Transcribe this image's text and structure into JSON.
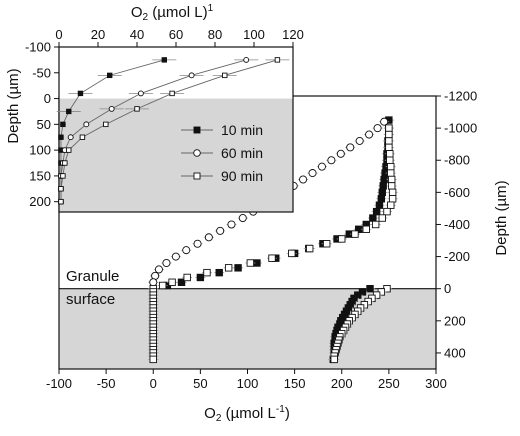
{
  "main": {
    "xlabel": "O2 (µmol L-1)",
    "ylabel": "Depth (µm)",
    "xlim": [
      -100,
      300
    ],
    "ylim": [
      -1200,
      500
    ],
    "xticks": [
      -100,
      -50,
      0,
      50,
      100,
      150,
      200,
      250,
      300
    ],
    "yticks": [
      -1200,
      -1000,
      -800,
      -600,
      -400,
      -200,
      0,
      200,
      400
    ],
    "annotation_line1": "Granule",
    "annotation_line2": "surface"
  },
  "inset": {
    "xlabel": "O2 (µmol L)1",
    "ylabel": "Depth (µm)",
    "xlim": [
      0,
      120
    ],
    "ylim": [
      -100,
      220
    ],
    "xticks": [
      0,
      20,
      40,
      60,
      80,
      100,
      120
    ],
    "yticks": [
      -100,
      -50,
      0,
      50,
      100,
      150,
      200
    ]
  },
  "legend": {
    "items": [
      "10 min",
      "60 min",
      "90 min"
    ]
  },
  "chart_data": [
    {
      "type": "scatter",
      "title": "",
      "xlabel": "O2 (µmol L-1)",
      "ylabel": "Depth (µm)",
      "xlim": [
        -100,
        300
      ],
      "ylim": [
        -1200,
        500
      ],
      "y_inverted": true,
      "grid": false,
      "shaded_region": {
        "y_from": 0,
        "y_to": 500
      },
      "series": [
        {
          "marker": "filled-square",
          "points": [
            [
              250,
              -1050
            ],
            [
              250,
              -1000
            ],
            [
              250,
              -960
            ],
            [
              249,
              -920
            ],
            [
              249,
              -880
            ],
            [
              248,
              -840
            ],
            [
              248,
              -800
            ],
            [
              247,
              -760
            ],
            [
              246,
              -720
            ],
            [
              245,
              -680
            ],
            [
              244,
              -640
            ],
            [
              243,
              -600
            ],
            [
              242,
              -560
            ],
            [
              240,
              -520
            ],
            [
              237,
              -480
            ],
            [
              233,
              -440
            ],
            [
              226,
              -400
            ],
            [
              218,
              -370
            ],
            [
              208,
              -340
            ],
            [
              195,
              -310
            ],
            [
              180,
              -280
            ],
            [
              165,
              -250
            ],
            [
              150,
              -220
            ],
            [
              130,
              -190
            ],
            [
              110,
              -160
            ],
            [
              90,
              -130
            ],
            [
              70,
              -100
            ],
            [
              50,
              -70
            ],
            [
              30,
              -40
            ],
            [
              15,
              -20
            ],
            [
              230,
              0
            ],
            [
              222,
              20
            ],
            [
              217,
              40
            ],
            [
              213,
              60
            ],
            [
              211,
              80
            ],
            [
              209,
              100
            ],
            [
              207,
              120
            ],
            [
              205,
              140
            ],
            [
              203,
              160
            ],
            [
              201,
              180
            ],
            [
              199,
              200
            ],
            [
              198,
              220
            ],
            [
              196,
              240
            ],
            [
              195,
              260
            ],
            [
              194,
              280
            ],
            [
              193,
              300
            ],
            [
              193,
              320
            ],
            [
              192,
              340
            ],
            [
              192,
              360
            ],
            [
              192,
              380
            ],
            [
              192,
              400
            ],
            [
              192,
              420
            ],
            [
              191,
              440
            ]
          ]
        },
        {
          "marker": "open-circle",
          "points": [
            [
              245,
              -1040
            ],
            [
              238,
              -1000
            ],
            [
              229,
              -960
            ],
            [
              219,
              -920
            ],
            [
              209,
              -880
            ],
            [
              199,
              -840
            ],
            [
              189,
              -800
            ],
            [
              179,
              -760
            ],
            [
              169,
              -720
            ],
            [
              159,
              -680
            ],
            [
              149,
              -640
            ],
            [
              139,
              -600
            ],
            [
              128,
              -560
            ],
            [
              118,
              -520
            ],
            [
              106,
              -480
            ],
            [
              95,
              -440
            ],
            [
              83,
              -400
            ],
            [
              71,
              -360
            ],
            [
              59,
              -320
            ],
            [
              47,
              -280
            ],
            [
              35,
              -240
            ],
            [
              24,
              -200
            ],
            [
              14,
              -160
            ],
            [
              6,
              -120
            ],
            [
              2,
              -80
            ],
            [
              0,
              -40
            ]
          ]
        },
        {
          "marker": "open-square",
          "points": [
            [
              250,
              -1000
            ],
            [
              250,
              -960
            ],
            [
              250,
              -920
            ],
            [
              250,
              -880
            ],
            [
              251,
              -840
            ],
            [
              251,
              -800
            ],
            [
              252,
              -760
            ],
            [
              252,
              -720
            ],
            [
              253,
              -680
            ],
            [
              253,
              -640
            ],
            [
              254,
              -600
            ],
            [
              254,
              -560
            ],
            [
              252,
              -520
            ],
            [
              248,
              -480
            ],
            [
              243,
              -440
            ],
            [
              236,
              -400
            ],
            [
              226,
              -370
            ],
            [
              214,
              -340
            ],
            [
              200,
              -310
            ],
            [
              184,
              -280
            ],
            [
              166,
              -250
            ],
            [
              147,
              -220
            ],
            [
              126,
              -190
            ],
            [
              103,
              -160
            ],
            [
              80,
              -130
            ],
            [
              57,
              -100
            ],
            [
              36,
              -70
            ],
            [
              20,
              -40
            ],
            [
              10,
              -20
            ],
            [
              248,
              0
            ],
            [
              242,
              20
            ],
            [
              237,
              40
            ],
            [
              232,
              60
            ],
            [
              228,
              80
            ],
            [
              224,
              100
            ],
            [
              220,
              120
            ],
            [
              217,
              140
            ],
            [
              214,
              160
            ],
            [
              211,
              180
            ],
            [
              208,
              200
            ],
            [
              206,
              220
            ],
            [
              204,
              240
            ],
            [
              202,
              260
            ],
            [
              200,
              280
            ],
            [
              198,
              300
            ],
            [
              197,
              320
            ],
            [
              196,
              340
            ],
            [
              195,
              360
            ],
            [
              194,
              380
            ],
            [
              193,
              400
            ],
            [
              192,
              420
            ],
            [
              192,
              440
            ],
            [
              0,
              0
            ],
            [
              0,
              20
            ],
            [
              0,
              40
            ],
            [
              0,
              60
            ],
            [
              0,
              80
            ],
            [
              0,
              100
            ],
            [
              0,
              120
            ],
            [
              0,
              140
            ],
            [
              0,
              160
            ],
            [
              0,
              180
            ],
            [
              0,
              200
            ],
            [
              0,
              220
            ],
            [
              0,
              240
            ],
            [
              0,
              260
            ],
            [
              0,
              280
            ],
            [
              0,
              300
            ],
            [
              0,
              320
            ],
            [
              0,
              340
            ],
            [
              0,
              360
            ],
            [
              0,
              380
            ],
            [
              0,
              400
            ],
            [
              0,
              420
            ],
            [
              0,
              440
            ]
          ]
        }
      ]
    },
    {
      "type": "scatter",
      "title": "",
      "xlabel": "O2 (µmol L)1",
      "ylabel": "Depth (µm)",
      "xlim": [
        0,
        120
      ],
      "ylim": [
        -100,
        220
      ],
      "y_inverted": true,
      "grid": false,
      "shaded_region": {
        "y_from": 0,
        "y_to": 220
      },
      "series": [
        {
          "name": "10 min",
          "marker": "filled-square",
          "points": [
            [
              54,
              -75
            ],
            [
              26,
              -45
            ],
            [
              11,
              -10
            ],
            [
              5,
              25
            ],
            [
              2,
              50
            ],
            [
              1,
              75
            ],
            [
              1,
              100
            ],
            [
              1,
              125
            ],
            [
              1,
              150
            ],
            [
              1,
              175
            ],
            [
              1,
              200
            ]
          ]
        },
        {
          "name": "60 min",
          "marker": "open-circle",
          "points": [
            [
              96,
              -75
            ],
            [
              68,
              -45
            ],
            [
              42,
              -10
            ],
            [
              27,
              20
            ],
            [
              14,
              50
            ],
            [
              6,
              75
            ],
            [
              3,
              100
            ],
            [
              2,
              125
            ],
            [
              1,
              150
            ],
            [
              1,
              175
            ],
            [
              1,
              200
            ]
          ]
        },
        {
          "name": "90 min",
          "marker": "open-square",
          "points": [
            [
              112,
              -75
            ],
            [
              85,
              -45
            ],
            [
              58,
              -10
            ],
            [
              40,
              20
            ],
            [
              24,
              50
            ],
            [
              12,
              75
            ],
            [
              5,
              100
            ],
            [
              3,
              125
            ],
            [
              2,
              150
            ],
            [
              1,
              175
            ],
            [
              1,
              200
            ]
          ]
        }
      ]
    }
  ]
}
